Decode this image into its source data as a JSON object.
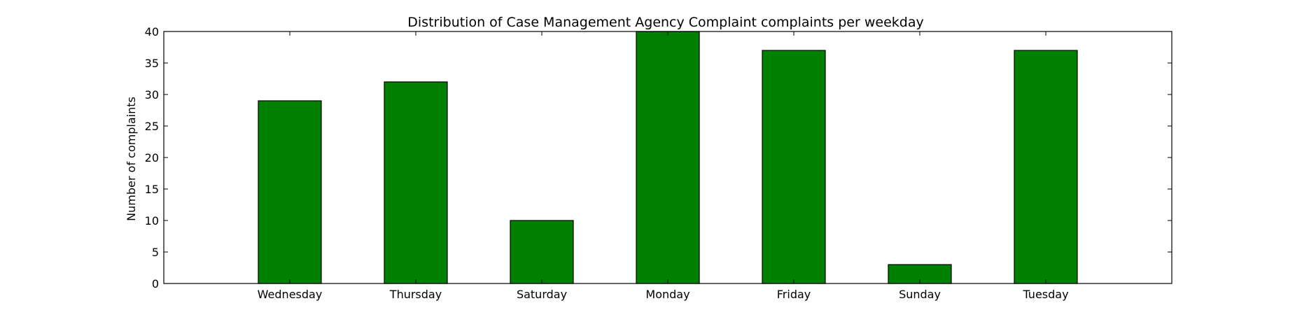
{
  "chart_data": {
    "type": "bar",
    "title": "Distribution of  Case Management Agency Complaint complaints per weekday",
    "xlabel": "",
    "ylabel": "Number of complaints",
    "categories": [
      "Wednesday",
      "Thursday",
      "Saturday",
      "Monday",
      "Friday",
      "Sunday",
      "Tuesday"
    ],
    "values": [
      29,
      32,
      10,
      40,
      37,
      3,
      37
    ],
    "ylim": [
      0,
      40
    ],
    "yticks": [
      0,
      5,
      10,
      15,
      20,
      25,
      30,
      35,
      40
    ],
    "grid": false,
    "legend": "none",
    "bar_color": "#008000"
  }
}
